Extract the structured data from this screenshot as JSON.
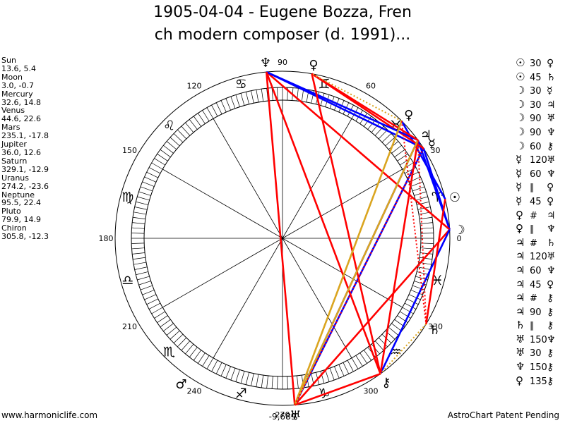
{
  "title": {
    "line1": "1905-04-04 - Eugene Bozza, Fren",
    "line2": "ch modern composer (d. 1991)..."
  },
  "planets": [
    {
      "name": "Sun",
      "coords": "13.6, 5.4"
    },
    {
      "name": "Moon",
      "coords": "3.0, -0.7"
    },
    {
      "name": "Mercury",
      "coords": "32.6, 14.8"
    },
    {
      "name": "Venus",
      "coords": "44.6, 22.6"
    },
    {
      "name": "Mars",
      "coords": "235.1, -17.8"
    },
    {
      "name": "Jupiter",
      "coords": "36.0, 12.6"
    },
    {
      "name": "Saturn",
      "coords": "329.1, -12.9"
    },
    {
      "name": "Uranus",
      "coords": "274.2, -23.6"
    },
    {
      "name": "Neptune",
      "coords": "95.5, 22.4"
    },
    {
      "name": "Pluto",
      "coords": "79.9, 14.9"
    },
    {
      "name": "Chiron",
      "coords": "305.8, -12.3"
    }
  ],
  "aspects": [
    {
      "a": "☉",
      "n": "30",
      "b": "♀"
    },
    {
      "a": "☉",
      "n": "45",
      "b": "♄"
    },
    {
      "a": "☽",
      "n": "30",
      "b": "☿"
    },
    {
      "a": "☽",
      "n": "30",
      "b": "♃"
    },
    {
      "a": "☽",
      "n": "90",
      "b": "♅"
    },
    {
      "a": "☽",
      "n": "90",
      "b": "♆"
    },
    {
      "a": "☽",
      "n": "60",
      "b": "⚷"
    },
    {
      "a": "☿",
      "n": "120",
      "b": "♅"
    },
    {
      "a": "☿",
      "n": "60",
      "b": "♆"
    },
    {
      "a": "☿",
      "n": "∥",
      "b": "♀"
    },
    {
      "a": "☿",
      "n": "45",
      "b": "♀"
    },
    {
      "a": "♀",
      "n": "#",
      "b": "♃"
    },
    {
      "a": "♀",
      "n": "∥",
      "b": "♆"
    },
    {
      "a": "♃",
      "n": "#",
      "b": "♄"
    },
    {
      "a": "♃",
      "n": "120",
      "b": "♅"
    },
    {
      "a": "♃",
      "n": "60",
      "b": "♆"
    },
    {
      "a": "♃",
      "n": "45",
      "b": "♀"
    },
    {
      "a": "♃",
      "n": "#",
      "b": "⚷"
    },
    {
      "a": "♃",
      "n": "90",
      "b": "⚷"
    },
    {
      "a": "♄",
      "n": "∥",
      "b": "⚷"
    },
    {
      "a": "♅",
      "n": "150",
      "b": "♆"
    },
    {
      "a": "♅",
      "n": "30",
      "b": "⚷"
    },
    {
      "a": "♆",
      "n": "150",
      "b": "⚷"
    },
    {
      "a": "♀",
      "n": "135",
      "b": "⚷"
    }
  ],
  "chart_data": {
    "type": "astrology-wheel",
    "degree_labels": [
      "0",
      "30",
      "60",
      "90",
      "120",
      "150",
      "180",
      "210",
      "240",
      "270",
      "300",
      "330"
    ],
    "bottom_readout": "-9,689",
    "signs": [
      {
        "symbol": "♈",
        "name": "aries-icon"
      },
      {
        "symbol": "♉",
        "name": "taurus-icon"
      },
      {
        "symbol": "♊",
        "name": "gemini-icon"
      },
      {
        "symbol": "♋",
        "name": "cancer-icon"
      },
      {
        "symbol": "♌",
        "name": "leo-icon"
      },
      {
        "symbol": "♍",
        "name": "virgo-icon"
      },
      {
        "symbol": "♎",
        "name": "libra-icon"
      },
      {
        "symbol": "♏",
        "name": "scorpio-icon"
      },
      {
        "symbol": "♐",
        "name": "sagittarius-icon"
      },
      {
        "symbol": "♑",
        "name": "capricorn-icon"
      },
      {
        "symbol": "♒",
        "name": "aquarius-icon"
      },
      {
        "symbol": "♓",
        "name": "pisces-icon"
      }
    ],
    "bodies": [
      {
        "key": "sun",
        "symbol": "☉",
        "lon": 13.6,
        "icon": "sun-icon"
      },
      {
        "key": "moon",
        "symbol": "☽",
        "lon": 3.0,
        "icon": "moon-icon"
      },
      {
        "key": "mercury",
        "symbol": "☿",
        "lon": 32.6,
        "icon": "mercury-icon"
      },
      {
        "key": "venus",
        "symbol": "♀",
        "lon": 44.6,
        "icon": "venus-icon"
      },
      {
        "key": "mars",
        "symbol": "♂",
        "lon": 235.1,
        "icon": "mars-icon"
      },
      {
        "key": "jupiter",
        "symbol": "♃",
        "lon": 36.0,
        "icon": "jupiter-icon"
      },
      {
        "key": "saturn",
        "symbol": "♄",
        "lon": 329.1,
        "icon": "saturn-icon"
      },
      {
        "key": "uranus",
        "symbol": "♅",
        "lon": 274.2,
        "icon": "uranus-icon"
      },
      {
        "key": "neptune",
        "symbol": "♆",
        "lon": 95.5,
        "icon": "neptune-icon"
      },
      {
        "key": "pluto",
        "symbol": "♀",
        "lon": 79.9,
        "icon": "pluto-icon"
      },
      {
        "key": "chiron",
        "symbol": "⚷",
        "lon": 305.8,
        "icon": "chiron-icon"
      }
    ],
    "aspect_lines": [
      {
        "from": "moon",
        "to": "mercury",
        "color": "#0000ff",
        "style": "solid"
      },
      {
        "from": "moon",
        "to": "jupiter",
        "color": "#0000ff",
        "style": "solid"
      },
      {
        "from": "moon",
        "to": "uranus",
        "color": "#ff0000",
        "style": "solid"
      },
      {
        "from": "moon",
        "to": "neptune",
        "color": "#ff0000",
        "style": "solid"
      },
      {
        "from": "moon",
        "to": "chiron",
        "color": "#0000ff",
        "style": "solid"
      },
      {
        "from": "sun",
        "to": "venus",
        "color": "#0000ff",
        "style": "solid"
      },
      {
        "from": "sun",
        "to": "saturn",
        "color": "#ff0000",
        "style": "solid"
      },
      {
        "from": "mercury",
        "to": "uranus",
        "color": "#0000ff",
        "style": "solid"
      },
      {
        "from": "mercury",
        "to": "neptune",
        "color": "#0000ff",
        "style": "solid"
      },
      {
        "from": "mercury",
        "to": "pluto",
        "color": "#ff0000",
        "style": "solid"
      },
      {
        "from": "jupiter",
        "to": "uranus",
        "color": "#0000ff",
        "style": "solid"
      },
      {
        "from": "jupiter",
        "to": "neptune",
        "color": "#0000ff",
        "style": "solid"
      },
      {
        "from": "jupiter",
        "to": "pluto",
        "color": "#ff0000",
        "style": "solid"
      },
      {
        "from": "jupiter",
        "to": "chiron",
        "color": "#ff0000",
        "style": "solid"
      },
      {
        "from": "uranus",
        "to": "chiron",
        "color": "#ff0000",
        "style": "solid"
      },
      {
        "from": "neptune",
        "to": "chiron",
        "color": "#ff0000",
        "style": "solid"
      },
      {
        "from": "neptune",
        "to": "uranus",
        "color": "#ff0000",
        "style": "solid"
      },
      {
        "from": "pluto",
        "to": "chiron",
        "color": "#ff0000",
        "style": "solid"
      },
      {
        "from": "venus",
        "to": "uranus",
        "color": "#daa520",
        "style": "solid"
      },
      {
        "from": "jupiter",
        "to": "uranus",
        "color": "#daa520",
        "style": "solid"
      },
      {
        "from": "jupiter",
        "to": "saturn",
        "color": "#ff0000",
        "style": "dotted"
      },
      {
        "from": "venus",
        "to": "saturn",
        "color": "#ff0000",
        "style": "dotted"
      },
      {
        "from": "mercury",
        "to": "uranus",
        "color": "#ff0000",
        "style": "dotted"
      },
      {
        "from": "venus",
        "to": "pluto",
        "color": "#daa520",
        "style": "dotted"
      },
      {
        "from": "saturn",
        "to": "chiron",
        "color": "#daa520",
        "style": "dotted"
      }
    ]
  },
  "footer": {
    "left": "www.harmoniclife.com",
    "right": "AstroChart Patent Pending"
  }
}
